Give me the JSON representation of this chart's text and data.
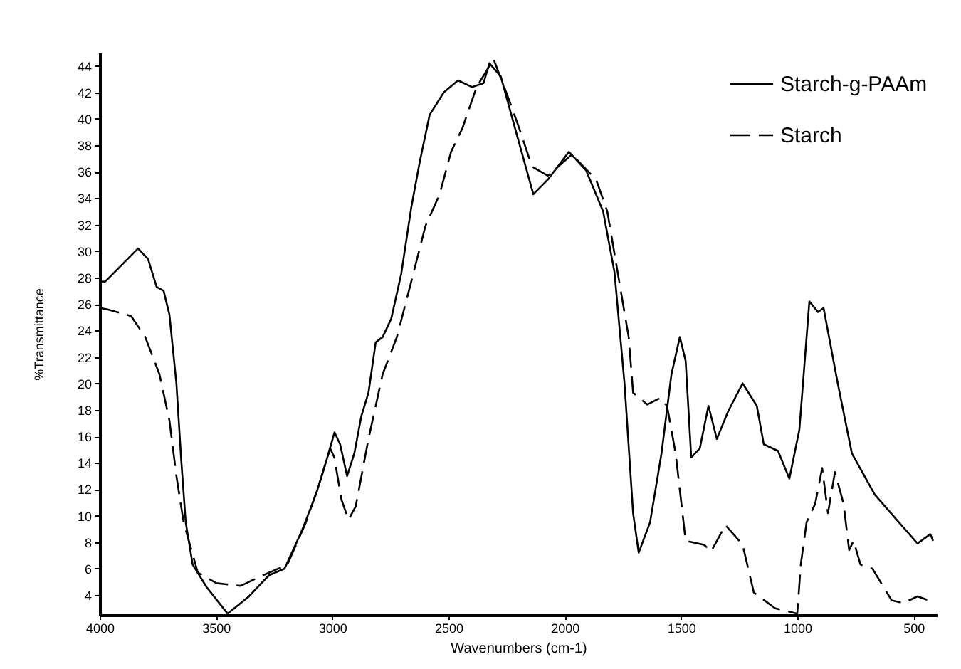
{
  "chart_data": {
    "type": "line",
    "xlabel": "Wavenumbers (cm-1)",
    "ylabel": "%Transmittance",
    "xlim": [
      4000,
      400
    ],
    "ylim": [
      2.5,
      45
    ],
    "xticks": [
      4000,
      3500,
      3000,
      2500,
      2000,
      1500,
      1000,
      500
    ],
    "yticks": [
      4,
      6,
      8,
      10,
      12,
      14,
      16,
      18,
      20,
      22,
      24,
      26,
      28,
      30,
      32,
      34,
      36,
      38,
      40,
      42,
      44
    ],
    "legend": "top right",
    "grid": false,
    "marker": "none",
    "series": [
      {
        "name": "Starch-g-PAAm",
        "color": "#000000",
        "line_style": "solid",
        "x": [
          4000,
          3976,
          3835,
          3792,
          3755,
          3725,
          3700,
          3670,
          3650,
          3630,
          3600,
          3540,
          3450,
          3358,
          3272,
          3205,
          3132,
          3070,
          3021,
          2990,
          2966,
          2936,
          2905,
          2875,
          2844,
          2813,
          2783,
          2746,
          2703,
          2660,
          2624,
          2581,
          2520,
          2459,
          2398,
          2349,
          2324,
          2275,
          2214,
          2135,
          2073,
          1982,
          1908,
          1835,
          1786,
          1743,
          1706,
          1682,
          1633,
          1584,
          1541,
          1505,
          1480,
          1456,
          1419,
          1382,
          1346,
          1297,
          1235,
          1174,
          1144,
          1083,
          1034,
          991,
          948,
          911,
          887,
          826,
          765,
          667,
          563,
          483,
          428,
          416
        ],
        "values": [
          27.7,
          27.7,
          30.2,
          29.4,
          27.3,
          27,
          25.2,
          20,
          14.4,
          9.5,
          6.3,
          4.6,
          2.6,
          3.9,
          5.5,
          6,
          8.8,
          11.6,
          14.4,
          16.3,
          15.4,
          13,
          14.7,
          17.5,
          19.3,
          23.1,
          23.5,
          24.9,
          28.3,
          33.3,
          36.7,
          40.3,
          42,
          42.9,
          42.4,
          42.7,
          44.2,
          43.2,
          39.3,
          34.3,
          35.4,
          37.5,
          36.1,
          33,
          28.4,
          20,
          10.2,
          7.2,
          9.5,
          14.7,
          20.7,
          23.5,
          21.7,
          14.4,
          15.1,
          18.3,
          15.8,
          17.9,
          20,
          18.3,
          15.4,
          14.9,
          12.8,
          16.5,
          26.2,
          25.4,
          25.7,
          20,
          14.7,
          11.6,
          9.5,
          7.9,
          8.6,
          8.1
        ]
      },
      {
        "name": "Starch",
        "color": "#000000",
        "line_style": "dashed",
        "x": [
          4000,
          3969,
          3865,
          3804,
          3743,
          3700,
          3670,
          3639,
          3578,
          3498,
          3394,
          3297,
          3193,
          3113,
          3052,
          3009,
          2991,
          2960,
          2930,
          2899,
          2844,
          2783,
          2722,
          2660,
          2599,
          2538,
          2489,
          2440,
          2379,
          2306,
          2245,
          2196,
          2141,
          2073,
          1969,
          1865,
          1817,
          1786,
          1725,
          1706,
          1645,
          1590,
          1560,
          1523,
          1480,
          1401,
          1370,
          1309,
          1235,
          1187,
          1095,
          1000,
          985,
          960,
          923,
          893,
          868,
          838,
          801,
          777,
          758,
          728,
          677,
          594,
          544,
          483,
          434
        ],
        "values": [
          25.7,
          25.6,
          25.1,
          23.5,
          20.7,
          17.2,
          13,
          9.5,
          5.7,
          4.9,
          4.7,
          5.5,
          6.3,
          9.5,
          12.6,
          15.1,
          14.4,
          11.2,
          9.7,
          10.7,
          15.8,
          20.7,
          23.5,
          27.7,
          31.9,
          34.3,
          37.5,
          39.3,
          42.4,
          44.5,
          41.7,
          39.3,
          36.4,
          35.7,
          37.3,
          35.4,
          33,
          29.8,
          23.5,
          19.3,
          18.4,
          18.9,
          18.3,
          14.7,
          8.1,
          7.8,
          7.3,
          9.3,
          7.8,
          4.2,
          3,
          2.6,
          6.3,
          9.5,
          10.9,
          13.6,
          10.2,
          13.3,
          10.9,
          7.4,
          8.1,
          6.3,
          6,
          3.6,
          3.4,
          3.9,
          3.6
        ]
      }
    ]
  }
}
